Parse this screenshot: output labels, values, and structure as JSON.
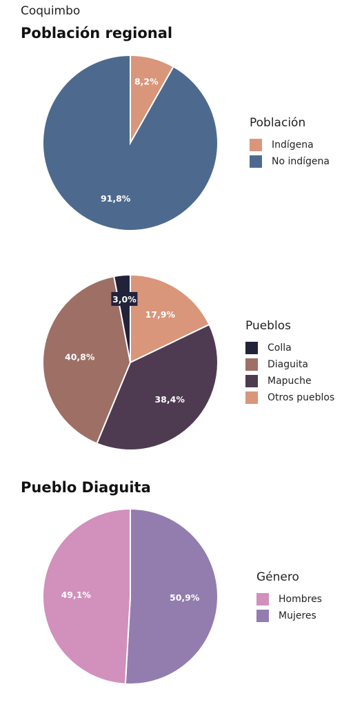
{
  "region": "Coquimbo",
  "chart_data": [
    {
      "type": "pie",
      "title": "Población regional",
      "legend_title": "Población",
      "legend_position": "right",
      "slices": [
        {
          "label": "Indígena",
          "value": 8.2,
          "display": "8,2%",
          "color": "#D9967A"
        },
        {
          "label": "No indígena",
          "value": 91.8,
          "display": "91,8%",
          "color": "#4D6A8E"
        }
      ]
    },
    {
      "type": "pie",
      "title": "",
      "legend_title": "Pueblos",
      "legend_position": "right",
      "slices": [
        {
          "label": "Otros pueblos",
          "value": 17.9,
          "display": "17,9%",
          "color": "#D9967A"
        },
        {
          "label": "Mapuche",
          "value": 38.4,
          "display": "38,4%",
          "color": "#4E3B51"
        },
        {
          "label": "Diaguita",
          "value": 40.8,
          "display": "40,8%",
          "color": "#9E6F65"
        },
        {
          "label": "Colla",
          "value": 3.0,
          "display": "3,0%",
          "color": "#22223A"
        }
      ],
      "legend_order": [
        "Colla",
        "Diaguita",
        "Mapuche",
        "Otros pueblos"
      ]
    },
    {
      "type": "pie",
      "title": "Pueblo Diaguita",
      "legend_title": "Género",
      "legend_position": "right",
      "slices": [
        {
          "label": "Mujeres",
          "value": 50.9,
          "display": "50,9%",
          "color": "#937DAE"
        },
        {
          "label": "Hombres",
          "value": 49.1,
          "display": "49,1%",
          "color": "#D290BC"
        }
      ],
      "legend_order": [
        "Hombres",
        "Mujeres"
      ]
    }
  ]
}
